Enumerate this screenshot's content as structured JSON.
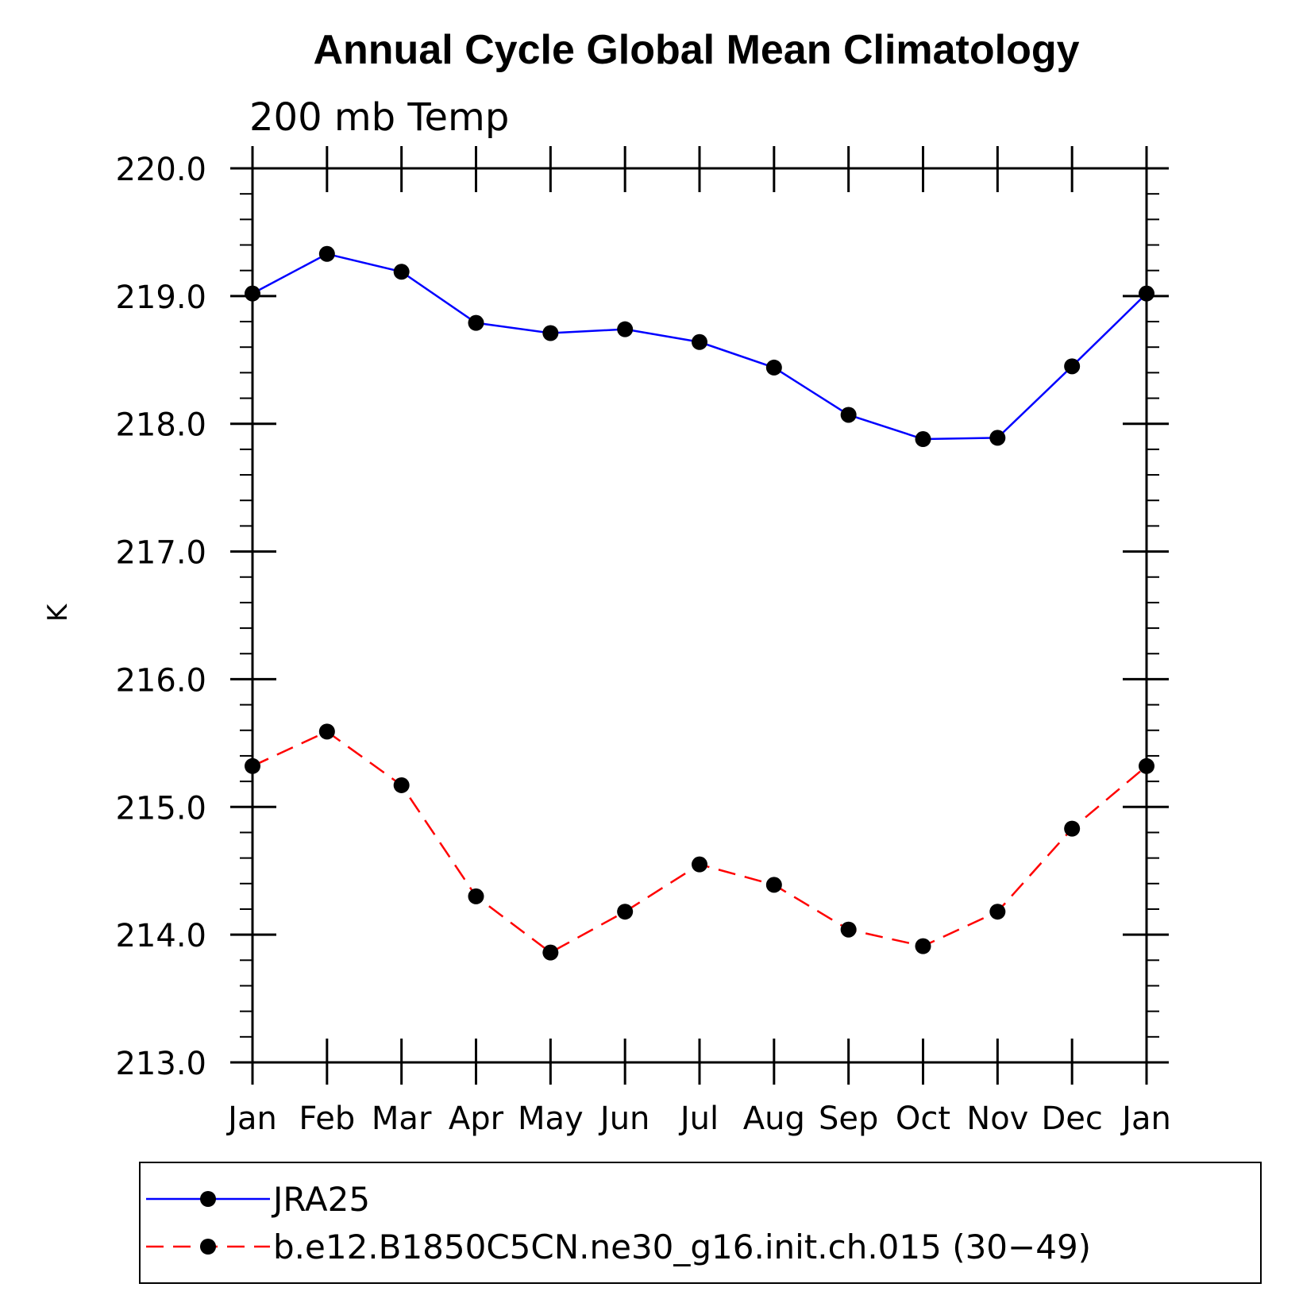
{
  "chart_data": {
    "type": "line",
    "title": "Annual Cycle Global Mean Climatology",
    "subtitle": "200 mb Temp",
    "xlabel": "",
    "ylabel": "K",
    "categories": [
      "Jan",
      "Feb",
      "Mar",
      "Apr",
      "May",
      "Jun",
      "Jul",
      "Aug",
      "Sep",
      "Oct",
      "Nov",
      "Dec",
      "Jan"
    ],
    "ylim": [
      213.0,
      220.0
    ],
    "yticks": [
      "213.0",
      "214.0",
      "215.0",
      "216.0",
      "217.0",
      "218.0",
      "219.0",
      "220.0"
    ],
    "ytick_values": [
      213,
      214,
      215,
      216,
      217,
      218,
      219,
      220
    ],
    "grid": false,
    "legend_position": "bottom",
    "series": [
      {
        "name": "JRA25",
        "color": "#0000ff",
        "dash": "solid",
        "values": [
          219.02,
          219.33,
          219.19,
          218.79,
          218.71,
          218.74,
          218.64,
          218.44,
          218.07,
          217.88,
          217.89,
          218.45,
          219.02
        ]
      },
      {
        "name": "b.e12.B1850C5CN.ne30_g16.init.ch.015 (30−49)",
        "color": "#ff0000",
        "dash": "dashed",
        "values": [
          215.32,
          215.59,
          215.17,
          214.3,
          213.86,
          214.18,
          214.55,
          214.39,
          214.04,
          213.91,
          214.18,
          214.83,
          215.32
        ]
      }
    ]
  }
}
